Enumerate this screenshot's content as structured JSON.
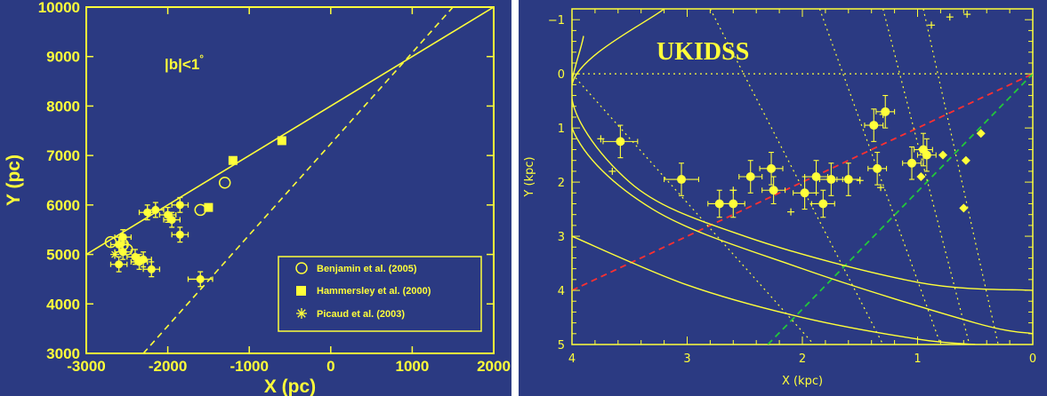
{
  "colors": {
    "background": "#2b3a82",
    "foreground": "#ffff3a",
    "red_line": "#ff3030",
    "green_line": "#22c83a"
  },
  "chart_data": [
    {
      "type": "scatter",
      "xlabel": "X (pc)",
      "ylabel": "Y (pc)",
      "xlim": [
        -3000,
        2000
      ],
      "ylim": [
        3000,
        10000
      ],
      "xticks": [
        -3000,
        -2000,
        -1000,
        0,
        1000,
        2000
      ],
      "yticks": [
        3000,
        4000,
        5000,
        6000,
        7000,
        8000,
        9000,
        10000
      ],
      "xtick_labels": [
        "-3000",
        "-2000",
        "-1000",
        "0",
        "1000",
        "2000"
      ],
      "ytick_labels": [
        "3000",
        "4000",
        "5000",
        "6000",
        "7000",
        "8000",
        "9000",
        "10000"
      ],
      "annotation": {
        "base": "|b|<1",
        "sup": "°"
      },
      "legend_position": "bottom-right",
      "legend": [
        {
          "marker": "open-circle",
          "label": "Benjamin et al. (2005)"
        },
        {
          "marker": "filled-square",
          "label": "Hammersley et al. (2000)"
        },
        {
          "marker": "asterisk",
          "label": "Picaud et al. (2003)"
        }
      ],
      "lines": [
        {
          "style": "solid",
          "points": [
            [
              -3000,
              5000
            ],
            [
              2000,
              10000
            ]
          ]
        },
        {
          "style": "dashed",
          "points": [
            [
              -2300,
              3000
            ],
            [
              1500,
              10000
            ]
          ]
        }
      ],
      "series": [
        {
          "name": "",
          "marker": "filled-circle",
          "points": [
            {
              "x": -2550,
              "y": 5350,
              "xerr": 100,
              "yerr": 150
            },
            {
              "x": -2600,
              "y": 5200,
              "xerr": 100,
              "yerr": 150
            },
            {
              "x": -2550,
              "y": 5050,
              "xerr": 100,
              "yerr": 150
            },
            {
              "x": -2600,
              "y": 4800,
              "xerr": 100,
              "yerr": 150
            },
            {
              "x": -2400,
              "y": 4950,
              "xerr": 100,
              "yerr": 150
            },
            {
              "x": -2350,
              "y": 4850,
              "xerr": 100,
              "yerr": 150
            },
            {
              "x": -2300,
              "y": 4900,
              "xerr": 100,
              "yerr": 150
            },
            {
              "x": -2200,
              "y": 4700,
              "xerr": 100,
              "yerr": 150
            },
            {
              "x": -2250,
              "y": 5850,
              "xerr": 100,
              "yerr": 150
            },
            {
              "x": -2150,
              "y": 5900,
              "xerr": 100,
              "yerr": 150
            },
            {
              "x": -2000,
              "y": 5800,
              "xerr": 100,
              "yerr": 150
            },
            {
              "x": -1950,
              "y": 5700,
              "xerr": 100,
              "yerr": 150
            },
            {
              "x": -1850,
              "y": 6000,
              "xerr": 100,
              "yerr": 150
            },
            {
              "x": -1850,
              "y": 5400,
              "xerr": 100,
              "yerr": 150
            },
            {
              "x": -1600,
              "y": 4500,
              "xerr": 150,
              "yerr": 150
            }
          ]
        },
        {
          "name": "Benjamin et al. (2005)",
          "marker": "open-circle",
          "points": [
            {
              "x": -2700,
              "y": 5250
            },
            {
              "x": -2550,
              "y": 5200
            },
            {
              "x": -2500,
              "y": 5100
            },
            {
              "x": -1600,
              "y": 5900
            },
            {
              "x": -1300,
              "y": 6450
            }
          ]
        },
        {
          "name": "Hammersley et al. (2000)",
          "marker": "filled-square",
          "points": [
            {
              "x": -1500,
              "y": 5950
            },
            {
              "x": -1200,
              "y": 6900
            },
            {
              "x": -600,
              "y": 7300
            }
          ]
        },
        {
          "name": "Picaud et al. (2003)",
          "marker": "asterisk",
          "points": [
            {
              "x": -2650,
              "y": 5000
            },
            {
              "x": -2550,
              "y": 5250
            }
          ]
        }
      ]
    },
    {
      "type": "scatter",
      "xlabel": "X (kpc)",
      "ylabel": "Y (kpc)",
      "xlim": [
        4,
        0
      ],
      "ylim": [
        5,
        -1.2
      ],
      "xticks": [
        4,
        3,
        2,
        1,
        0
      ],
      "yticks": [
        -1,
        0,
        1,
        2,
        3,
        4,
        5
      ],
      "xtick_labels": [
        "4",
        "3",
        "2",
        "1",
        "0"
      ],
      "ytick_labels": [
        "−1",
        "0",
        "1",
        "2",
        "3",
        "4",
        "5"
      ],
      "annotation": "UKIDSS",
      "lines": [
        {
          "style": "dotted",
          "color": "foreground",
          "points": [
            [
              4,
              0
            ],
            [
              0,
              0
            ]
          ]
        },
        {
          "style": "dashed",
          "color": "red_line",
          "points": [
            [
              4,
              4
            ],
            [
              0,
              0
            ]
          ]
        },
        {
          "style": "dashed",
          "color": "green_line",
          "points": [
            [
              2.3,
              5
            ],
            [
              0,
              0
            ]
          ]
        },
        {
          "style": "dotted",
          "color": "foreground",
          "points": [
            [
              4,
              0
            ],
            [
              1.9,
              5
            ]
          ]
        },
        {
          "style": "dotted",
          "color": "foreground",
          "points": [
            [
              2.8,
              -1.2
            ],
            [
              1.3,
              5
            ]
          ]
        },
        {
          "style": "dotted",
          "color": "foreground",
          "points": [
            [
              1.85,
              -1.2
            ],
            [
              0.8,
              5
            ]
          ]
        },
        {
          "style": "dotted",
          "color": "foreground",
          "points": [
            [
              1.3,
              -1.2
            ],
            [
              0.55,
              5
            ]
          ]
        },
        {
          "style": "dotted",
          "color": "foreground",
          "points": [
            [
              0.95,
              -1.2
            ],
            [
              0.3,
              5
            ]
          ]
        }
      ],
      "curves": [
        {
          "style": "solid",
          "points": [
            [
              3.2,
              -1.2
            ],
            [
              4,
              0.2
            ],
            [
              3.5,
              2
            ],
            [
              2.5,
              3
            ],
            [
              1,
              3.85
            ],
            [
              0,
              4
            ]
          ]
        },
        {
          "style": "solid",
          "points": [
            [
              3.9,
              -0.7
            ],
            [
              4,
              1
            ],
            [
              3.3,
              2.5
            ],
            [
              2,
              3.6
            ],
            [
              0.5,
              4.6
            ],
            [
              0,
              4.8
            ]
          ]
        },
        {
          "style": "solid",
          "points": [
            [
              4,
              3
            ],
            [
              3,
              3.9
            ],
            [
              2,
              4.5
            ],
            [
              1,
              4.9
            ],
            [
              0.5,
              5
            ]
          ]
        }
      ],
      "series": [
        {
          "name": "",
          "marker": "filled-circle",
          "points": [
            {
              "x": 3.58,
              "y": 1.25,
              "xerr": 0.15,
              "yerr": 0.3
            },
            {
              "x": 3.05,
              "y": 1.95,
              "xerr": 0.15,
              "yerr": 0.3
            },
            {
              "x": 2.72,
              "y": 2.4,
              "xerr": 0.1,
              "yerr": 0.25
            },
            {
              "x": 2.6,
              "y": 2.4,
              "xerr": 0.1,
              "yerr": 0.25
            },
            {
              "x": 2.45,
              "y": 1.9,
              "xerr": 0.1,
              "yerr": 0.3
            },
            {
              "x": 2.27,
              "y": 1.75,
              "xerr": 0.1,
              "yerr": 0.3
            },
            {
              "x": 2.25,
              "y": 2.15,
              "xerr": 0.1,
              "yerr": 0.25
            },
            {
              "x": 1.98,
              "y": 2.2,
              "xerr": 0.1,
              "yerr": 0.3
            },
            {
              "x": 1.88,
              "y": 1.9,
              "xerr": 0.1,
              "yerr": 0.3
            },
            {
              "x": 1.82,
              "y": 2.4,
              "xerr": 0.1,
              "yerr": 0.25
            },
            {
              "x": 1.75,
              "y": 1.95,
              "xerr": 0.1,
              "yerr": 0.3
            },
            {
              "x": 1.6,
              "y": 1.95,
              "xerr": 0.1,
              "yerr": 0.3
            },
            {
              "x": 1.38,
              "y": 0.95,
              "xerr": 0.08,
              "yerr": 0.3
            },
            {
              "x": 1.35,
              "y": 1.75,
              "xerr": 0.08,
              "yerr": 0.3
            },
            {
              "x": 1.28,
              "y": 0.7,
              "xerr": 0.08,
              "yerr": 0.3
            },
            {
              "x": 1.05,
              "y": 1.65,
              "xerr": 0.08,
              "yerr": 0.3
            },
            {
              "x": 0.95,
              "y": 1.4,
              "xerr": 0.08,
              "yerr": 0.3
            },
            {
              "x": 0.92,
              "y": 1.5,
              "xerr": 0.08,
              "yerr": 0.3
            }
          ]
        },
        {
          "name": "",
          "marker": "diamond",
          "points": [
            {
              "x": 0.97,
              "y": 1.9
            },
            {
              "x": 0.78,
              "y": 1.5
            },
            {
              "x": 0.58,
              "y": 1.6
            },
            {
              "x": 0.6,
              "y": 2.48
            },
            {
              "x": 0.45,
              "y": 1.1
            }
          ]
        },
        {
          "name": "",
          "marker": "plus",
          "points": [
            {
              "x": 0.88,
              "y": -0.9
            },
            {
              "x": 0.72,
              "y": -1.05
            },
            {
              "x": 0.57,
              "y": -1.1
            },
            {
              "x": 1.3,
              "y": 0.75
            },
            {
              "x": 1.32,
              "y": 2.1
            },
            {
              "x": 1.5,
              "y": 1.97
            },
            {
              "x": 2.1,
              "y": 2.55
            },
            {
              "x": 2.6,
              "y": 2.15
            },
            {
              "x": 3.75,
              "y": 1.2
            },
            {
              "x": 3.65,
              "y": 1.8
            }
          ]
        }
      ]
    }
  ]
}
